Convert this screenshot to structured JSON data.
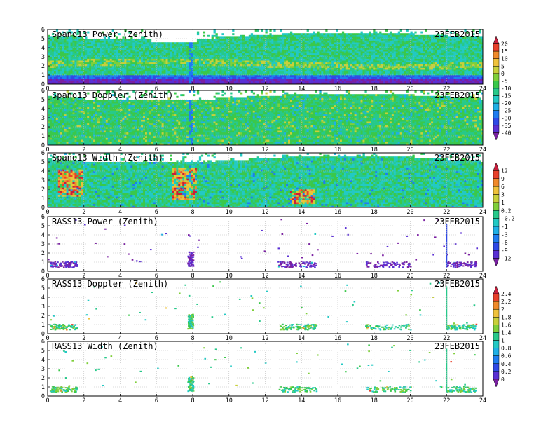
{
  "chart_data": [
    {
      "type": "heatmap",
      "title": "Spano13 Power (Zenith)",
      "date": "23FEB2015",
      "xlim": [
        0,
        24
      ],
      "ylim": [
        0,
        6
      ],
      "xticks": [
        "0",
        "2",
        "4",
        "6",
        "8",
        "10",
        "12",
        "14",
        "16",
        "18",
        "20",
        "22",
        "24"
      ],
      "yticks": [
        "0",
        "1",
        "2",
        "3",
        "4",
        "5",
        "6"
      ],
      "colorbar": 0,
      "fill": "dense",
      "band_heights": [
        0.5,
        2.0,
        4.2
      ],
      "gap_hours": [
        5.6,
        8.2
      ],
      "blue_stripe_hour": 7.8
    },
    {
      "type": "heatmap",
      "title": "Spano13 Doppler (Zenith)",
      "date": "23FEB2015",
      "xlim": [
        0,
        24
      ],
      "ylim": [
        0,
        6
      ],
      "xticks": [
        "0",
        "2",
        "4",
        "6",
        "8",
        "10",
        "12",
        "14",
        "16",
        "18",
        "20",
        "22",
        "24"
      ],
      "yticks": [
        "0",
        "1",
        "2",
        "3",
        "4",
        "5",
        "6"
      ],
      "colorbar": 0,
      "fill": "dense",
      "blue_stripe_hour": 7.8
    },
    {
      "type": "heatmap",
      "title": "Spano13 Width (Zenith)",
      "date": "23FEB2015",
      "xlim": [
        0,
        24
      ],
      "ylim": [
        0,
        6
      ],
      "xticks": [
        "0",
        "2",
        "4",
        "6",
        "8",
        "10",
        "12",
        "14",
        "16",
        "18",
        "20",
        "22",
        "24"
      ],
      "yticks": [
        "0",
        "1",
        "2",
        "3",
        "4",
        "5",
        "6"
      ],
      "colorbar": 1,
      "fill": "dense",
      "hotspots": [
        [
          1.2,
          3.0
        ],
        [
          7.5,
          3.5
        ],
        [
          14.0,
          1.5
        ]
      ]
    },
    {
      "type": "scatter",
      "title": "RASS13 Power (Zenith)",
      "date": "23FEB2015",
      "xlim": [
        0,
        24
      ],
      "ylim": [
        0,
        6
      ],
      "xticks": [
        "0",
        "2",
        "4",
        "6",
        "8",
        "10",
        "12",
        "14",
        "16",
        "18",
        "20",
        "22",
        "24"
      ],
      "yticks": [
        "0",
        "1",
        "2",
        "3",
        "4",
        "5",
        "6"
      ],
      "colorbar": 1,
      "fill": "sparse",
      "clusters": [
        [
          0.1,
          1.6
        ],
        [
          7.7,
          8.0
        ],
        [
          12.7,
          14.8
        ],
        [
          17.5,
          20.0
        ],
        [
          22.0,
          23.6
        ]
      ],
      "vertical_line_hour": 22.0
    },
    {
      "type": "scatter",
      "title": "RASS13 Doppler (Zenith)",
      "date": "23FEB2015",
      "xlim": [
        0,
        24
      ],
      "ylim": [
        0,
        6
      ],
      "xticks": [
        "0",
        "2",
        "4",
        "6",
        "8",
        "10",
        "12",
        "14",
        "16",
        "18",
        "20",
        "22",
        "24"
      ],
      "yticks": [
        "0",
        "1",
        "2",
        "3",
        "4",
        "5",
        "6"
      ],
      "colorbar": 2,
      "fill": "sparse",
      "clusters": [
        [
          0.1,
          1.6
        ],
        [
          7.7,
          8.0
        ],
        [
          12.7,
          14.8
        ],
        [
          17.5,
          20.0
        ],
        [
          22.0,
          23.6
        ]
      ],
      "vertical_line_hour": 22.0
    },
    {
      "type": "scatter",
      "title": "RASS13 Width (Zenith)",
      "date": "23FEB2015",
      "xlim": [
        0,
        24
      ],
      "ylim": [
        0,
        6
      ],
      "xticks": [
        "0",
        "2",
        "4",
        "6",
        "8",
        "10",
        "12",
        "14",
        "16",
        "18",
        "20",
        "22",
        "24"
      ],
      "yticks": [
        "0",
        "1",
        "2",
        "3",
        "4",
        "5",
        "6"
      ],
      "colorbar": 2,
      "fill": "sparse",
      "clusters": [
        [
          0.1,
          1.6
        ],
        [
          7.7,
          8.0
        ],
        [
          12.7,
          14.8
        ],
        [
          17.5,
          20.0
        ],
        [
          22.0,
          23.6
        ]
      ],
      "vertical_line_hour": 22.0
    }
  ],
  "colorbars": [
    {
      "labels": [
        "20",
        "15",
        "10",
        "5",
        "0",
        "-5",
        "-10",
        "-15",
        "-20",
        "-25",
        "-30",
        "-35",
        "-40"
      ]
    },
    {
      "labels": [
        "12",
        "9",
        "6",
        "3",
        "1",
        "0.2",
        "-0.2",
        "-1",
        "-3",
        "-6",
        "-9",
        "-12"
      ]
    },
    {
      "labels": [
        "2.4",
        "2.2",
        "2",
        "1.8",
        "1.6",
        "1.4",
        "1",
        "0.8",
        "0.6",
        "0.4",
        "0.2",
        "0"
      ]
    }
  ],
  "colors": {
    "scale": [
      "#7a1fa2",
      "#5a2fd4",
      "#2f49e6",
      "#1e7cf0",
      "#1fb0e6",
      "#22c9c4",
      "#27c98a",
      "#3ac84a",
      "#7fcf3a",
      "#c8d03a",
      "#efc23a",
      "#f08a2a",
      "#e8402a",
      "#c81e3c"
    ],
    "background": "#ffffff",
    "grid": "#b8b8b8"
  }
}
